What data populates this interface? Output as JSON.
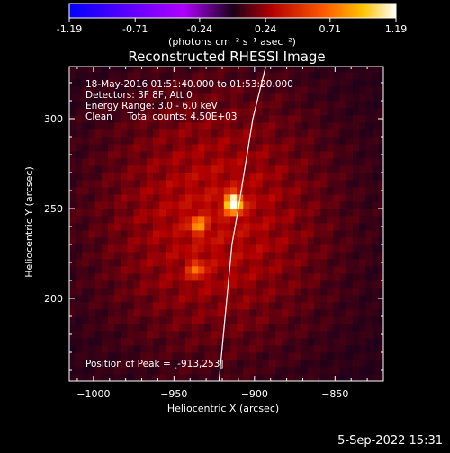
{
  "colorbar": {
    "ticks": [
      "-1.19",
      "-0.71",
      "-0.24",
      "0.24",
      "0.71",
      "1.19"
    ],
    "tick_values": [
      -1.19,
      -0.71,
      -0.24,
      0.24,
      0.71,
      1.19
    ],
    "range": [
      -1.19,
      1.19
    ],
    "unit_label": "(photons cm⁻² s⁻¹ asec⁻²)"
  },
  "chart_data": {
    "type": "heatmap",
    "title": "Reconstructed RHESSI Image",
    "xlabel": "Heliocentric X (arcsec)",
    "ylabel": "Heliocentric Y (arcsec)",
    "xlim": [
      -1015,
      -820
    ],
    "ylim": [
      154,
      329
    ],
    "x_ticks": [
      -1000,
      -950,
      -900,
      -850
    ],
    "y_ticks": [
      200,
      250,
      300
    ],
    "x_tick_labels": [
      "−1000",
      "−950",
      "−900",
      "−850"
    ],
    "y_tick_labels": [
      "200",
      "250",
      "300"
    ],
    "sources": [
      {
        "x": -913,
        "y": 253,
        "peak": 1.19
      },
      {
        "x": -935,
        "y": 241,
        "peak": 0.55
      },
      {
        "x": -936,
        "y": 216,
        "peak": 0.45
      }
    ],
    "limb_curve": [
      [
        -922,
        154
      ],
      [
        -914,
        230
      ],
      [
        -910,
        250
      ],
      [
        -901,
        300
      ],
      [
        -893,
        329
      ]
    ],
    "info_lines": [
      "18-May-2016 01:51:40.000 to 01:53:20.000",
      "Detectors: 3F 8F, Att 0",
      "Energy Range: 3.0 - 6.0 keV",
      "Clean     Total counts: 4.50E+03"
    ],
    "peak_position_text": "Position of Peak = [-913,253]"
  },
  "footer": {
    "date": "5-Sep-2022 15:31"
  }
}
